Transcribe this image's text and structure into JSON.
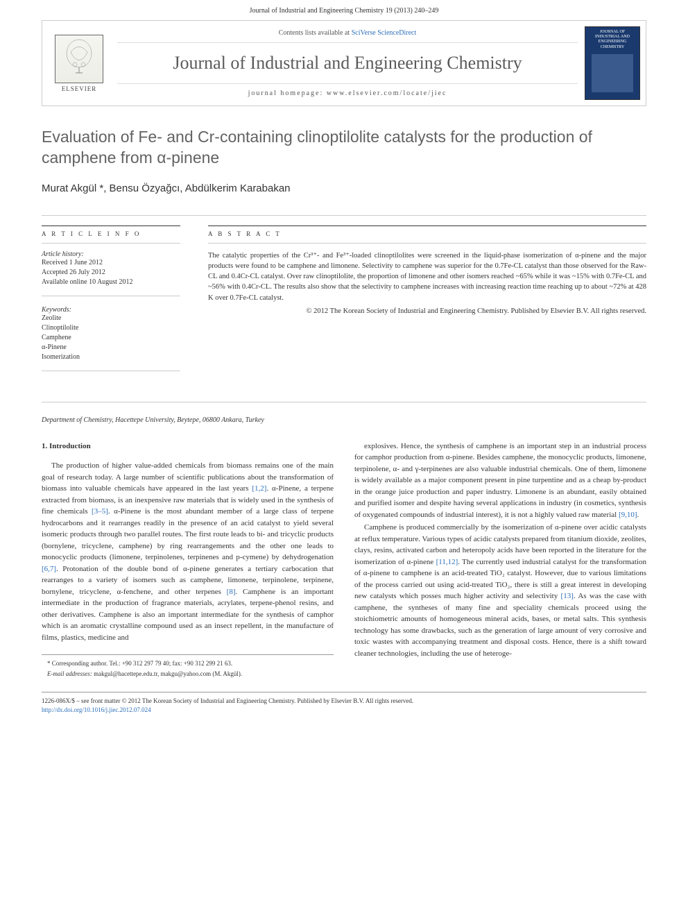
{
  "header": {
    "top_line": "Journal of Industrial and Engineering Chemistry 19 (2013) 240–249",
    "contents_prefix": "Contents lists available at ",
    "contents_link": "SciVerse ScienceDirect",
    "journal_name": "Journal of Industrial and Engineering Chemistry",
    "homepage_prefix": "journal homepage: ",
    "homepage_url": "www.elsevier.com/locate/jiec",
    "publisher_logo": "ELSEVIER",
    "cover_title": "JOURNAL OF INDUSTRIAL AND ENGINEERING CHEMISTRY"
  },
  "article": {
    "title": "Evaluation of Fe- and Cr-containing clinoptilolite catalysts for the production of camphene from α-pinene",
    "authors": "Murat Akgül *, Bensu Özyağcı, Abdülkerim Karabakan",
    "affiliation": "Department of Chemistry, Hacettepe University, Beytepe, 06800 Ankara, Turkey"
  },
  "info": {
    "heading": "A R T I C L E   I N F O",
    "history_label": "Article history:",
    "history_lines": [
      "Received 1 June 2012",
      "Accepted 26 July 2012",
      "Available online 10 August 2012"
    ],
    "keywords_label": "Keywords:",
    "keywords": [
      "Zeolite",
      "Clinoptilolite",
      "Camphene",
      "α-Pinene",
      "Isomerization"
    ]
  },
  "abstract": {
    "heading": "A B S T R A C T",
    "text": "The catalytic properties of the Cr³⁺- and Fe³⁺-loaded clinoptilolites were screened in the liquid-phase isomerization of α-pinene and the major products were found to be camphene and limonene. Selectivity to camphene was superior for the 0.7Fe-CL catalyst than those observed for the Raw-CL and 0.4Cr-CL catalyst. Over raw clinoptilolite, the proportion of limonene and other isomers reached ~65% while it was ~15% with 0.7Fe-CL and ~56% with 0.4Cr-CL. The results also show that the selectivity to camphene increases with increasing reaction time reaching up to about ~72% at 428 K over 0.7Fe-CL catalyst.",
    "copyright": "© 2012 The Korean Society of Industrial and Engineering Chemistry. Published by Elsevier B.V. All rights reserved."
  },
  "body": {
    "section1_heading": "1. Introduction",
    "p1": "The production of higher value-added chemicals from biomass remains one of the main goal of research today. A large number of scientific publications about the transformation of biomass into valuable chemicals have appeared in the last years [1,2]. α-Pinene, a terpene extracted from biomass, is an inexpensive raw materials that is widely used in the synthesis of fine chemicals [3–5]. α-Pinene is the most abundant member of a large class of terpene hydrocarbons and it rearranges readily in the presence of an acid catalyst to yield several isomeric products through two parallel routes. The first route leads to bi- and tricyclic products (bornylene, tricyclene, camphene) by ring rearrangements and the other one leads to monocyclic products (limonene, terpinolenes, terpinenes and p-cymene) by dehydrogenation [6,7]. Protonation of the double bond of α-pinene generates a tertiary carbocation that rearranges to a variety of isomers such as camphene, limonene, terpinolene, terpinene, bornylene, tricyclene, α-fenchene, and other terpenes [8]. Camphene is an important intermediate in the production of fragrance materials, acrylates, terpene-phenol resins, and other derivatives. Camphene is also an important intermediate for the synthesis of camphor which is an aromatic crystalline compound used as an insect repellent, in the manufacture of films, plastics, medicine and",
    "p2": "explosives. Hence, the synthesis of camphene is an important step in an industrial process for camphor production from α-pinene. Besides camphene, the monocyclic products, limonene, terpinolene, α- and γ-terpinenes are also valuable industrial chemicals. One of them, limonene is widely available as a major component present in pine turpentine and as a cheap by-product in the orange juice production and paper industry. Limonene is an abundant, easily obtained and purified isomer and despite having several applications in industry (in cosmetics, synthesis of oxygenated compounds of industrial interest), it is not a highly valued raw material [9,10].",
    "p3": "Camphene is produced commercially by the isomerization of α-pinene over acidic catalysts at reflux temperature. Various types of acidic catalysts prepared from titanium dioxide, zeolites, clays, resins, activated carbon and heteropoly acids have been reported in the literature for the isomerization of α-pinene [11,12]. The currently used industrial catalyst for the transformation of α-pinene to camphene is an acid-treated TiO₂ catalyst. However, due to various limitations of the process carried out using acid-treated TiO₂, there is still a great interest in developing new catalysts which posses much higher activity and selectivity [13]. As was the case with camphene, the syntheses of many fine and speciality chemicals proceed using the stoichiometric amounts of homogeneous mineral acids, bases, or metal salts. This synthesis technology has some drawbacks, such as the generation of large amount of very corrosive and toxic wastes with accompanying treatment and disposal costs. Hence, there is a shift toward cleaner technologies, including the use of heteroge-"
  },
  "footnote": {
    "corr": "* Corresponding author. Tel.: +90 312 297 79 40; fax: +90 312 299 21 63.",
    "email_label": "E-mail addresses:",
    "emails": "makgul@hacettepe.edu.tr, makgu@yahoo.com (M. Akgül)."
  },
  "footer": {
    "line1": "1226-086X/$ – see front matter © 2012 The Korean Society of Industrial and Engineering Chemistry. Published by Elsevier B.V. All rights reserved.",
    "doi": "http://dx.doi.org/10.1016/j.jiec.2012.07.024"
  }
}
